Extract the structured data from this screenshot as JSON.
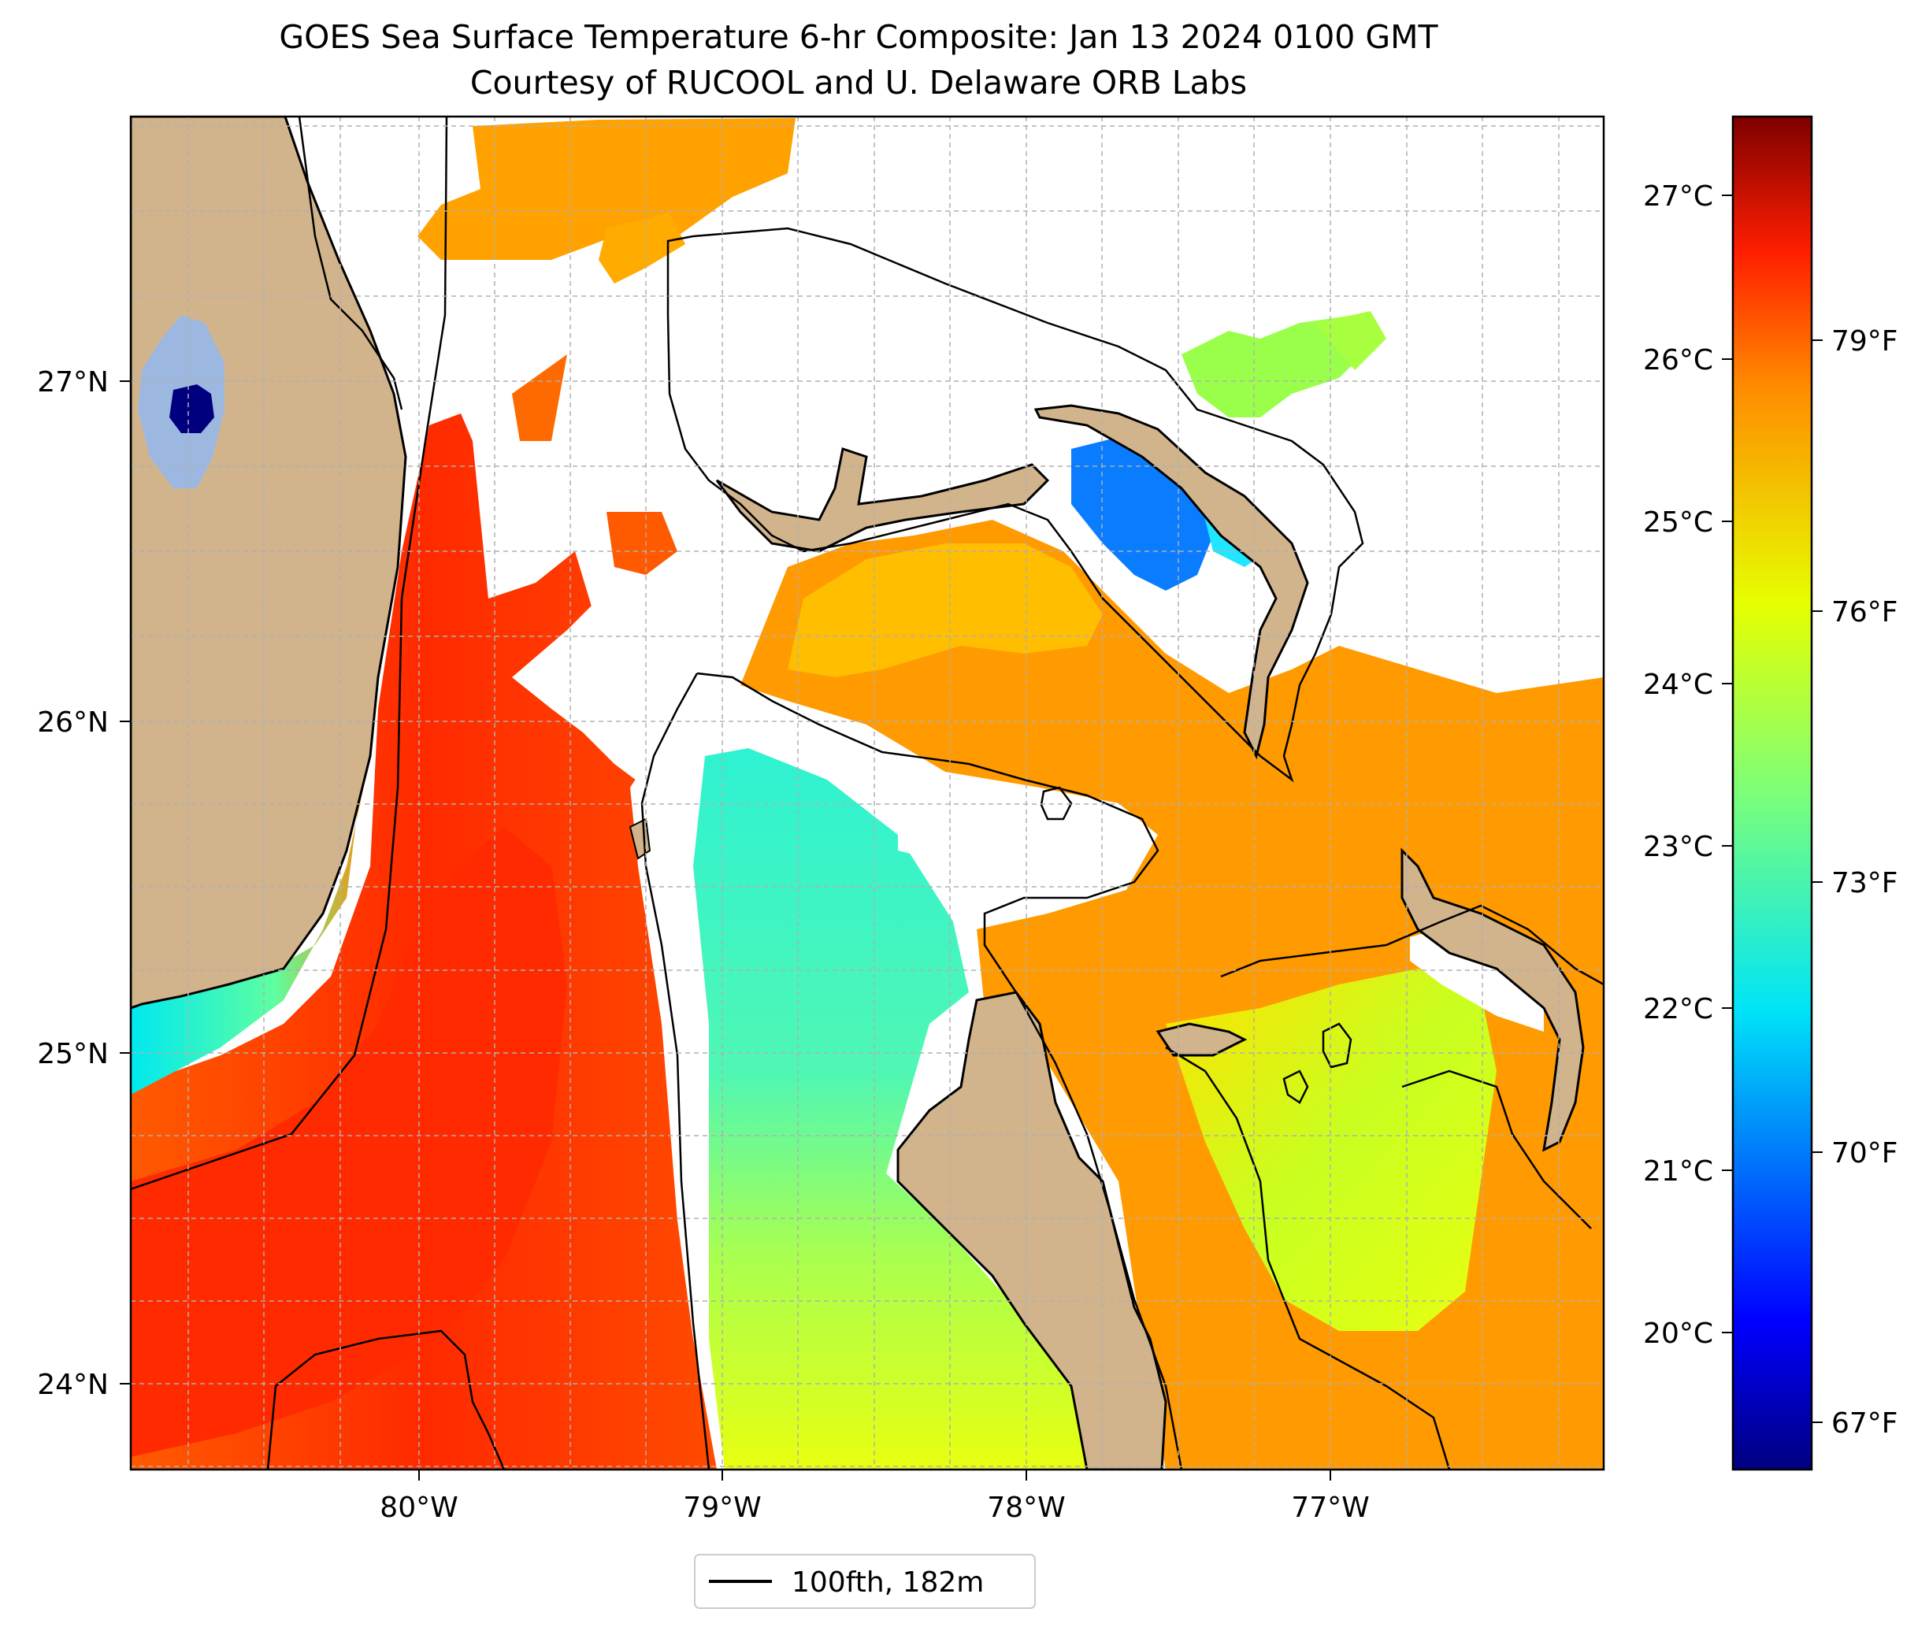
{
  "title": {
    "line1": "GOES Sea Surface Temperature 6-hr Composite: Jan 13 2024 0100 GMT",
    "line2": "Courtesy of RUCOOL and U. Delaware ORB Labs"
  },
  "map": {
    "lon_range": [
      -80.95,
      -76.1
    ],
    "lat_range": [
      23.74,
      27.82
    ],
    "lon_ticks": [
      {
        "value": -80,
        "label": "80°W"
      },
      {
        "value": -79,
        "label": "79°W"
      },
      {
        "value": -78,
        "label": "78°W"
      },
      {
        "value": -77,
        "label": "77°W"
      }
    ],
    "lat_ticks": [
      {
        "value": 24,
        "label": "24°N"
      },
      {
        "value": 25,
        "label": "25°N"
      },
      {
        "value": 26,
        "label": "26°N"
      },
      {
        "value": 27,
        "label": "27°N"
      }
    ],
    "gridlines": "dashed",
    "colors": {
      "land": "#d2b48c",
      "lake": "#9db8e0",
      "no_data": "#ffffff",
      "contour": "#000000"
    },
    "features": [
      "Florida peninsula",
      "Lake Okeechobee",
      "Grand Bahama",
      "Great Abaco",
      "Andros Island",
      "Bimini",
      "Berry Islands",
      "Eleuthera",
      "New Providence"
    ]
  },
  "colorbar": {
    "colormap": "jet",
    "celsius_ticks": [
      "27°C",
      "26°C",
      "25°C",
      "24°C",
      "23°C",
      "22°C",
      "21°C",
      "20°C"
    ],
    "fahrenheit_ticks": [
      "79°F",
      "76°F",
      "73°F",
      "70°F",
      "67°F"
    ],
    "stops": [
      "#00007f",
      "#0000ff",
      "#007fff",
      "#00e4f8",
      "#7cff79",
      "#e6ff00",
      "#ffa500",
      "#ff3b00",
      "#7f0000"
    ]
  },
  "legend": {
    "placement": "bottom-center",
    "entries": [
      {
        "label": "100fth, 182m",
        "style": "black-line"
      }
    ]
  }
}
